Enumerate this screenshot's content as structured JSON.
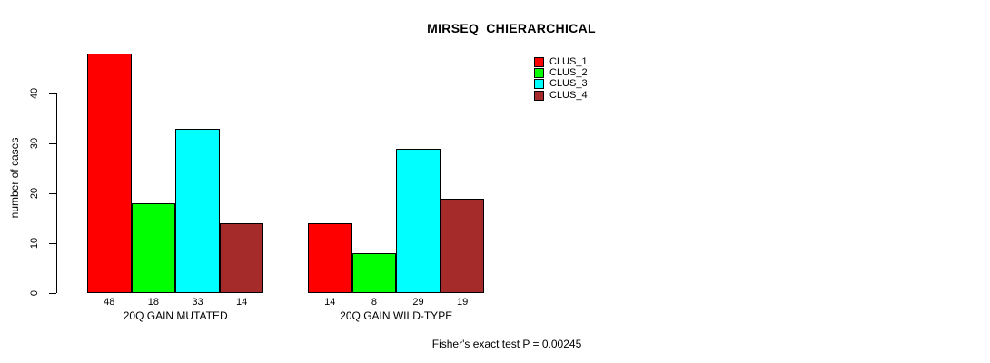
{
  "title": "MIRSEQ_CHIERARCHICAL",
  "ylabel": "number of cases",
  "footer": "Fisher's exact test P = 0.00245",
  "chart_data": {
    "type": "bar",
    "title": "MIRSEQ_CHIERARCHICAL",
    "xlabel": "",
    "ylabel": "number of cases",
    "categories": [
      "20Q GAIN MUTATED",
      "20Q GAIN WILD-TYPE"
    ],
    "series": [
      {
        "name": "CLUS_1",
        "color": "#FF0000",
        "values": [
          48,
          14
        ]
      },
      {
        "name": "CLUS_2",
        "color": "#00FF00",
        "values": [
          18,
          8
        ]
      },
      {
        "name": "CLUS_3",
        "color": "#00FFFF",
        "values": [
          33,
          29
        ]
      },
      {
        "name": "CLUS_4",
        "color": "#A52A2A",
        "values": [
          14,
          19
        ]
      }
    ],
    "yticks": [
      0,
      10,
      20,
      30,
      40
    ],
    "ylim": [
      0,
      48
    ],
    "bar_value_labels_shown": true,
    "grid": false,
    "legend_position": "top-right",
    "annotation": "Fisher's exact test P = 0.00245"
  }
}
